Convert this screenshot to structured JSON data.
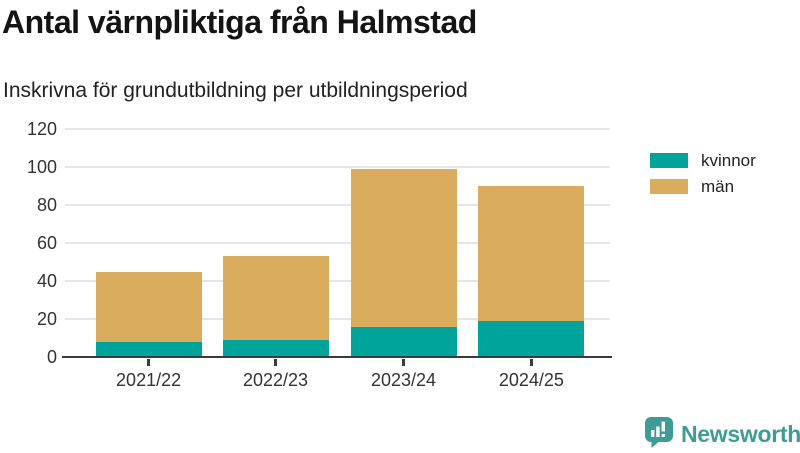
{
  "header": {
    "title": "Antal värnpliktiga från Halmstad",
    "subtitle": "Inskrivna för grundutbildning per utbildningsperiod"
  },
  "chart_data": {
    "type": "bar",
    "stacked": true,
    "categories": [
      "2021/22",
      "2022/23",
      "2023/24",
      "2024/25"
    ],
    "series": [
      {
        "name": "kvinnor",
        "color": "#00a49b",
        "values": [
          8,
          9,
          16,
          19
        ]
      },
      {
        "name": "män",
        "color": "#d9ac5e",
        "values": [
          37,
          44,
          83,
          71
        ]
      }
    ],
    "totals": [
      45,
      53,
      99,
      90
    ],
    "title": "Antal värnpliktiga från Halmstad",
    "subtitle": "Inskrivna för grundutbildning per utbildningsperiod",
    "xlabel": "",
    "ylabel": "",
    "ylim": [
      0,
      120
    ],
    "yticks": [
      0,
      20,
      40,
      60,
      80,
      100,
      120
    ],
    "grid": true,
    "legend_position": "right",
    "colors": {
      "axis": "#3b3b3b",
      "gridline": "#e6e6e6",
      "tick_text": "#333333"
    }
  },
  "branding": {
    "logo_text": "Newsworthy",
    "logo_color": "#3f9b95",
    "logo_icon": "newsworthy-speech-bubble-bar-chart-icon"
  }
}
